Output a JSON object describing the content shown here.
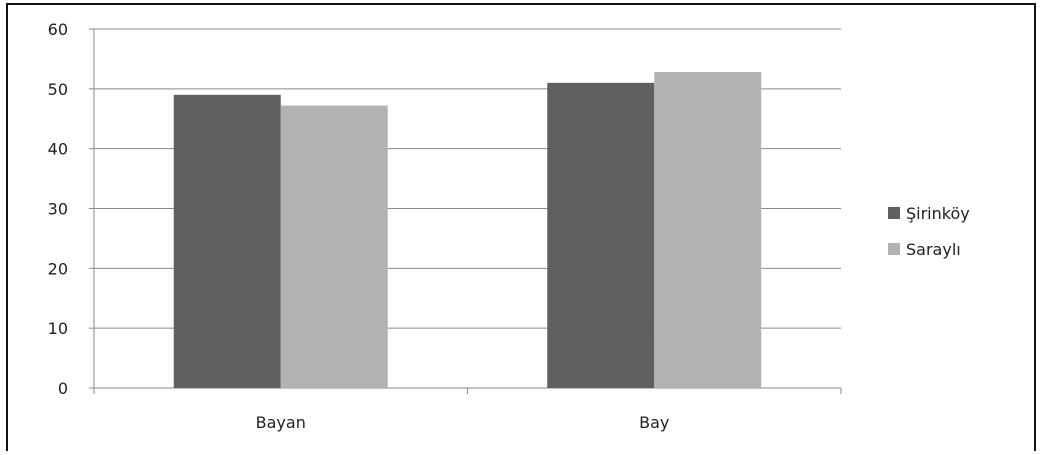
{
  "chart_data": {
    "type": "bar",
    "categories": [
      "Bayan",
      "Bay"
    ],
    "series": [
      {
        "name": "Şirinköy",
        "values": [
          49,
          51
        ],
        "color": "#606060"
      },
      {
        "name": "Saraylı",
        "values": [
          47.2,
          52.8
        ],
        "color": "#b2b2b2"
      }
    ],
    "ylim": [
      0,
      60
    ],
    "yticks": [
      0,
      10,
      20,
      30,
      40,
      50,
      60
    ],
    "title": "",
    "xlabel": "",
    "ylabel": "",
    "grid": true,
    "legend": "right"
  }
}
